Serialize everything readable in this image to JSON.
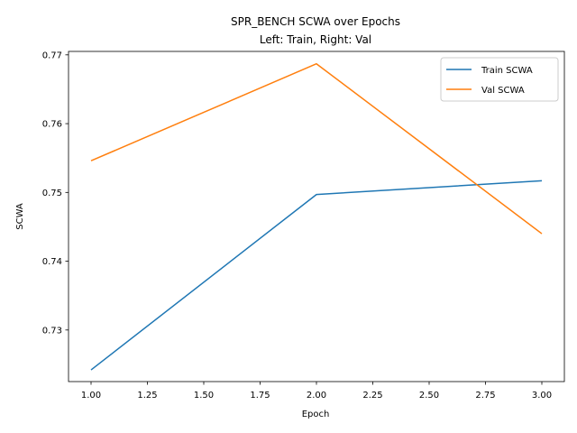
{
  "chart_data": {
    "type": "line",
    "title": "SPR_BENCH SCWA over Epochs",
    "subtitle": "Left: Train, Right: Val",
    "xlabel": "Epoch",
    "ylabel": "SCWA",
    "xlim": [
      0.9,
      3.1
    ],
    "ylim": [
      0.7225,
      0.7705
    ],
    "x_ticks": [
      1.0,
      1.25,
      1.5,
      1.75,
      2.0,
      2.25,
      2.5,
      2.75,
      3.0
    ],
    "x_tick_labels": [
      "1.00",
      "1.25",
      "1.50",
      "1.75",
      "2.00",
      "2.25",
      "2.50",
      "2.75",
      "3.00"
    ],
    "y_ticks": [
      0.73,
      0.74,
      0.75,
      0.76,
      0.77
    ],
    "y_tick_labels": [
      "0.73",
      "0.74",
      "0.75",
      "0.76",
      "0.77"
    ],
    "grid": false,
    "legend_position": "top-right",
    "series": [
      {
        "name": "Train SCWA",
        "color": "#1f77b4",
        "x": [
          1,
          2,
          3
        ],
        "y": [
          0.7242,
          0.7497,
          0.7517
        ]
      },
      {
        "name": "Val SCWA",
        "color": "#ff7f0e",
        "x": [
          1,
          2,
          3
        ],
        "y": [
          0.7546,
          0.7687,
          0.744
        ]
      }
    ]
  }
}
